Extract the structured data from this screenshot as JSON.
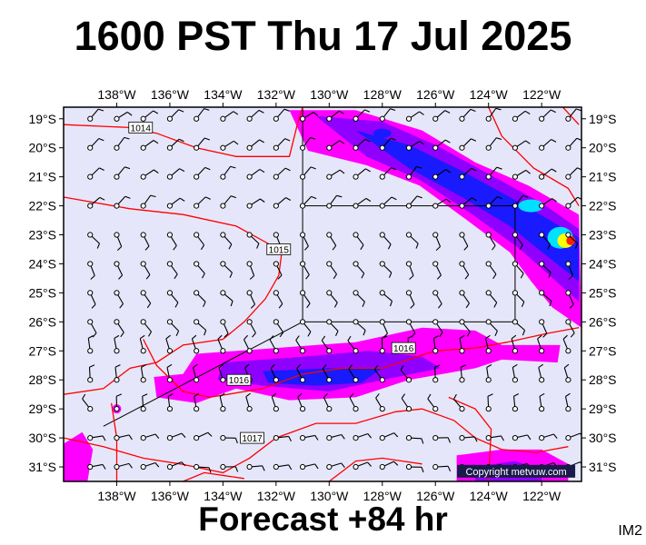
{
  "header": {
    "title": "1600 PST Thu 17 Jul 2025"
  },
  "footer": {
    "forecast": "Forecast +84 hr",
    "image_id": "IM2"
  },
  "copyright": "Copyright metvuw.com",
  "colors": {
    "ocean": "#e6e6fa",
    "isobar": "#ff0000",
    "precip_light": "#ff00ff",
    "precip_mid": "#9000ff",
    "precip_heavy": "#1a1aff",
    "precip_cyan": "#00e0ff",
    "precip_yellow": "#ffff00",
    "precip_red": "#ff2000"
  },
  "map": {
    "projection": "lon-lat",
    "lon_range": [
      -140,
      -120.5
    ],
    "lat_range": [
      -31.5,
      -18.6
    ],
    "x_ticks": [
      "138°W",
      "136°W",
      "134°W",
      "132°W",
      "130°W",
      "128°W",
      "126°W",
      "124°W",
      "122°W"
    ],
    "x_tick_values": [
      -138,
      -136,
      -134,
      -132,
      -130,
      -128,
      -126,
      -124,
      -122
    ],
    "y_ticks": [
      "19°S",
      "20°S",
      "21°S",
      "22°S",
      "23°S",
      "24°S",
      "25°S",
      "26°S",
      "27°S",
      "28°S",
      "29°S",
      "30°S",
      "31°S"
    ],
    "y_tick_values": [
      -19,
      -20,
      -21,
      -22,
      -23,
      -24,
      -25,
      -26,
      -27,
      -28,
      -29,
      -30,
      -31
    ],
    "isobar_labels": [
      {
        "text": "1014",
        "lon": -137.1,
        "lat": -19.3
      },
      {
        "text": "1015",
        "lon": -131.9,
        "lat": -23.5
      },
      {
        "text": "1016",
        "lon": -127.2,
        "lat": -26.9
      },
      {
        "text": "1016",
        "lon": -133.4,
        "lat": -28.0
      },
      {
        "text": "1017",
        "lon": -132.9,
        "lat": -30.0
      }
    ],
    "inset_box": {
      "lon": [
        -131,
        -123
      ],
      "lat": [
        -26,
        -22
      ]
    },
    "inset_box_top": {
      "lon": [
        -131,
        -123
      ],
      "lat": [
        -22,
        -18.6
      ]
    }
  }
}
